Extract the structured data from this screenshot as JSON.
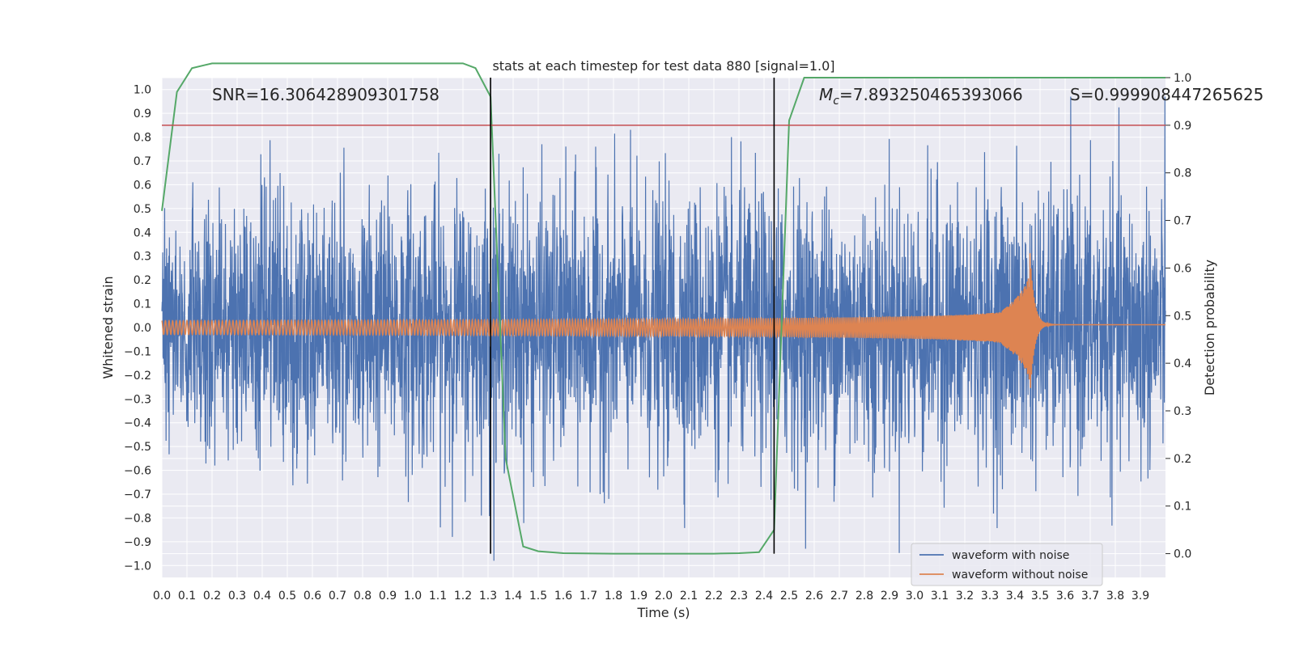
{
  "chart_data": {
    "type": "line",
    "title": "stats at each timestep for test data 880 [signal=1.0]",
    "xlabel": "Time (s)",
    "ylabel": "Whitened strain",
    "y2label": "Detection probability",
    "xlim": [
      0.0,
      4.0
    ],
    "ylim": [
      -1.05,
      1.05
    ],
    "y2lim": [
      -0.05,
      1.0
    ],
    "xticks": [
      "0.0",
      "0.1",
      "0.2",
      "0.3",
      "0.4",
      "0.5",
      "0.6",
      "0.7",
      "0.8",
      "0.9",
      "1.0",
      "1.1",
      "1.2",
      "1.3",
      "1.4",
      "1.5",
      "1.6",
      "1.7",
      "1.8",
      "1.9",
      "2.0",
      "2.1",
      "2.2",
      "2.3",
      "2.4",
      "2.5",
      "2.6",
      "2.7",
      "2.8",
      "2.9",
      "3.0",
      "3.1",
      "3.2",
      "3.3",
      "3.4",
      "3.5",
      "3.6",
      "3.7",
      "3.8",
      "3.9"
    ],
    "yticks": [
      "1.0",
      "0.9",
      "0.8",
      "0.7",
      "0.6",
      "0.5",
      "0.4",
      "0.3",
      "0.2",
      "0.1",
      "0.0",
      "-0.1",
      "-0.2",
      "-0.3",
      "-0.4",
      "-0.5",
      "-0.6",
      "-0.7",
      "-0.8",
      "-0.9",
      "-1.0"
    ],
    "y2ticks": [
      "1.0",
      "0.9",
      "0.8",
      "0.7",
      "0.6",
      "0.5",
      "0.4",
      "0.3",
      "0.2",
      "0.1",
      "0.0"
    ],
    "annotations": {
      "snr": "SNR=16.306428909301758",
      "mc_symbol": "M",
      "mc_sub": "c",
      "mc_value": "=7.893250465393066",
      "s": "S=0.999908447265625"
    },
    "threshold": 0.9,
    "vertical_lines": [
      1.31,
      2.44
    ],
    "series": [
      {
        "name": "waveform with noise",
        "color": "#4c72b0",
        "axis": "left",
        "kind": "noise",
        "amplitude_std": 0.28
      },
      {
        "name": "waveform without noise",
        "color": "#dd8452",
        "axis": "left",
        "kind": "chirp",
        "merger_time": 3.46
      },
      {
        "name": "detection probability",
        "color": "#55a868",
        "axis": "right",
        "x": [
          0.0,
          0.06,
          0.12,
          0.2,
          0.3,
          0.5,
          0.8,
          1.0,
          1.2,
          1.25,
          1.31,
          1.37,
          1.44,
          1.5,
          1.6,
          1.8,
          2.0,
          2.2,
          2.3,
          2.38,
          2.44,
          2.5,
          2.56,
          2.7,
          3.0,
          3.5,
          4.0
        ],
        "y": [
          0.72,
          0.97,
          1.02,
          1.03,
          1.03,
          1.03,
          1.03,
          1.03,
          1.03,
          1.02,
          0.96,
          0.2,
          0.015,
          0.005,
          0.001,
          0.0,
          0.0,
          0.0,
          0.001,
          0.003,
          0.05,
          0.91,
          1.0,
          1.0,
          1.0,
          1.0,
          1.0
        ]
      }
    ],
    "colors": {
      "background": "#eaeaf2",
      "grid": "#ffffff",
      "threshold_line": "#c44e52",
      "vertical_line": "#000000"
    },
    "legend": {
      "location": "lower-right"
    }
  }
}
